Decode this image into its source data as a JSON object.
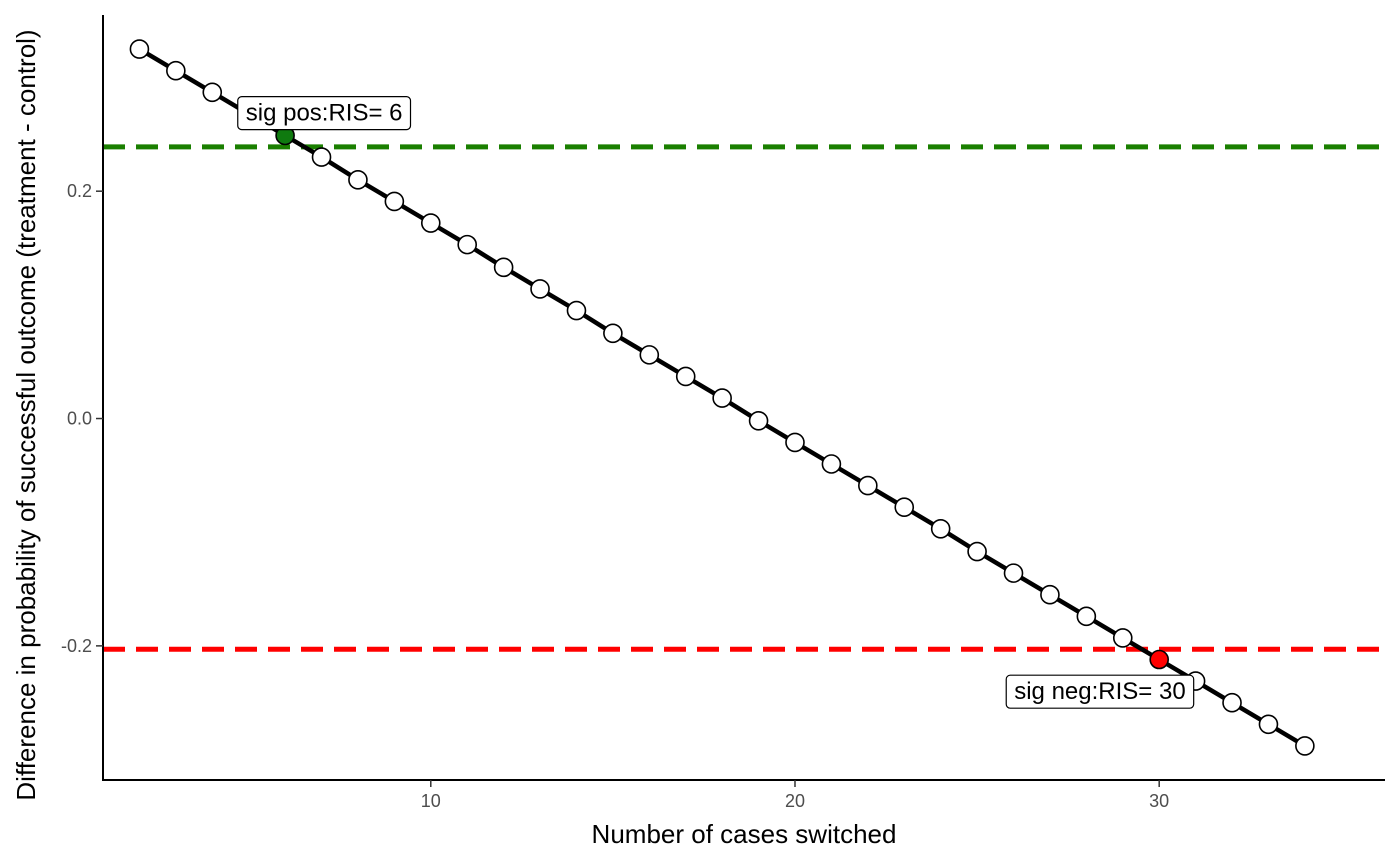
{
  "chart_data": {
    "type": "line",
    "xlabel": "Number of cases switched",
    "ylabel": "Difference in probability of successful outcome (treatment - control)",
    "xlim": [
      1,
      36.2
    ],
    "ylim": [
      -0.318,
      0.355
    ],
    "x_ticks": [
      10,
      20,
      30
    ],
    "x_tick_labels": [
      "10",
      "20",
      "30"
    ],
    "y_ticks": [
      0.2,
      0.0,
      -0.2
    ],
    "y_tick_labels": [
      "0.2",
      "0.0",
      "-0.2"
    ],
    "grid": false,
    "legend": "none",
    "series": [
      {
        "x": [
          2,
          3,
          4,
          5,
          6,
          7,
          8,
          9,
          10,
          11,
          12,
          13,
          14,
          15,
          16,
          17,
          18,
          19,
          20,
          21,
          22,
          23,
          24,
          25,
          26,
          27,
          28,
          29,
          30,
          31,
          32,
          33,
          34
        ],
        "values": [
          0.325,
          0.306,
          0.287,
          0.268,
          0.249,
          0.23,
          0.21,
          0.191,
          0.172,
          0.153,
          0.133,
          0.114,
          0.095,
          0.075,
          0.056,
          0.037,
          0.018,
          -0.002,
          -0.021,
          -0.04,
          -0.059,
          -0.078,
          -0.097,
          -0.117,
          -0.136,
          -0.155,
          -0.174,
          -0.193,
          -0.212,
          -0.231,
          -0.25,
          -0.269,
          -0.288
        ]
      }
    ],
    "thresholds": [
      {
        "y": 0.239,
        "color": "#1a7f00"
      },
      {
        "y": -0.203,
        "color": "#ff0000"
      }
    ],
    "highlighted_points": [
      {
        "x": 6,
        "y": 0.249,
        "color": "#0f7a0f"
      },
      {
        "x": 30,
        "y": -0.212,
        "color": "#ff0000"
      }
    ],
    "annotations": [
      {
        "text": "sig pos:RIS= 6",
        "x": 4.7,
        "y": 0.27,
        "anchor": "start"
      },
      {
        "text": "sig neg:RIS= 30",
        "x": 25.8,
        "y": -0.239,
        "anchor": "start"
      }
    ]
  }
}
